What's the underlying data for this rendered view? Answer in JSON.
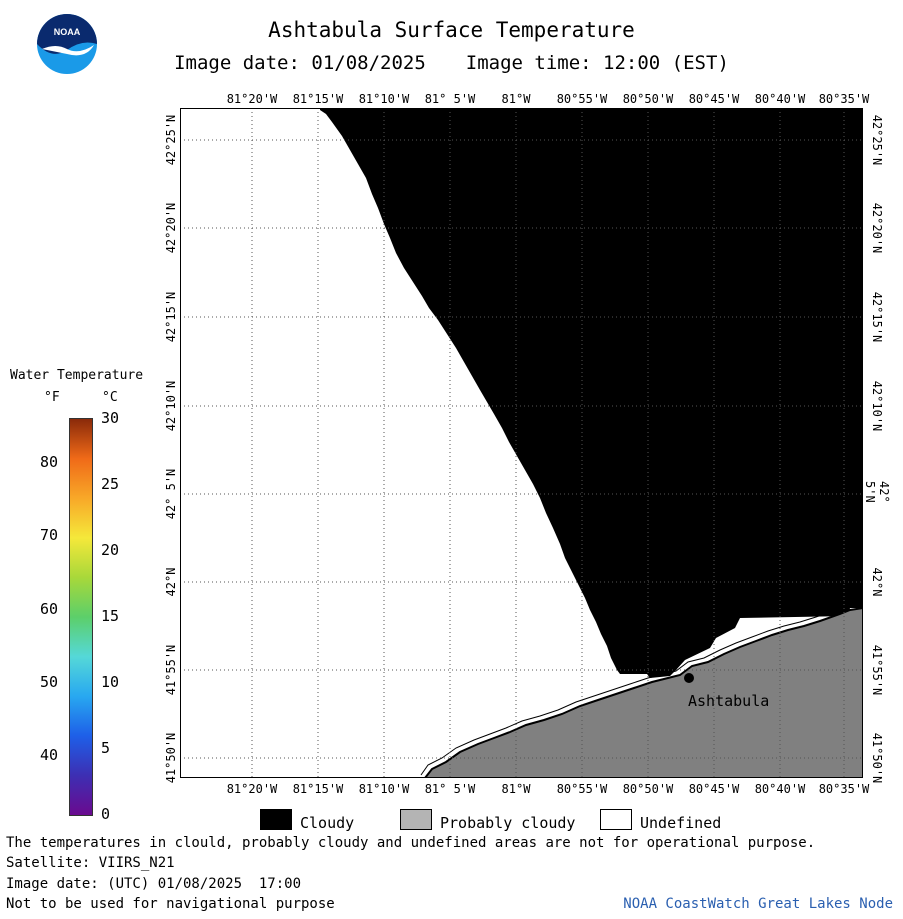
{
  "header": {
    "title": "Ashtabula Surface Temperature",
    "image_date": "Image date: 01/08/2025",
    "image_time": "Image time: 12:00 (EST)"
  },
  "logo": {
    "text": "NOAA",
    "colors": {
      "top": "#0a2a6e",
      "bottom": "#1a9ae8",
      "bird": "#ffffff"
    }
  },
  "map": {
    "lon_labels": [
      "81°20'W",
      "81°15'W",
      "81°10'W",
      "81° 5'W",
      "81°W",
      "80°55'W",
      "80°50'W",
      "80°45'W",
      "80°40'W",
      "80°35'W"
    ],
    "lat_labels": [
      "42°25'N",
      "42°20'N",
      "42°15'N",
      "42°10'N",
      "42° 5'N",
      "42°N",
      "41°55'N",
      "41°50'N"
    ],
    "place_label": "Ashtabula",
    "colors": {
      "cloud": "#000000",
      "land": "#808080",
      "undefined": "#ffffff",
      "grid": "#555555"
    }
  },
  "legend": {
    "title": "Water Temperature",
    "unit_f": "°F",
    "unit_c": "°C",
    "fahrenheit_ticks": [
      "80",
      "70",
      "60",
      "50",
      "40"
    ],
    "celsius_ticks": [
      "30",
      "25",
      "20",
      "15",
      "10",
      "5",
      "0"
    ]
  },
  "key": [
    {
      "label": "Cloudy",
      "color": "#000000"
    },
    {
      "label": "Probably cloudy",
      "color": "#b4b4b4"
    },
    {
      "label": "Undefined",
      "color": "#ffffff"
    }
  ],
  "footer": {
    "note": "The temperatures in clould, probably cloudy and undefined areas are not for operational purpose.",
    "satellite": "Satellite: VIIRS_N21",
    "utc_date": "Image date: (UTC) 01/08/2025  17:00",
    "nav_warning": "Not to be used for navigational purpose",
    "credit": "NOAA CoastWatch Great Lakes Node"
  }
}
